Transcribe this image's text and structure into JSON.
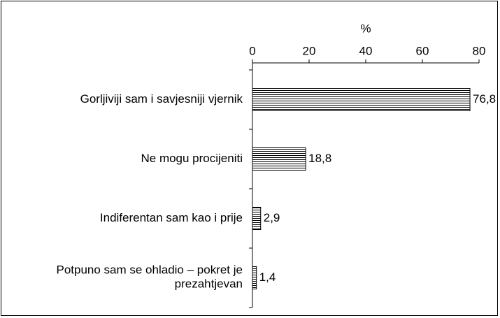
{
  "chart_data": {
    "type": "barh",
    "x_label": "%",
    "categories": [
      "Gorljiviji sam i savjesniji vjernik",
      "Ne mogu procijeniti",
      "Indiferentan sam kao i prije",
      "Potpuno sam se ohladio – pokret je\nprezahtjevan"
    ],
    "values": [
      76.8,
      18.8,
      2.9,
      1.4
    ],
    "value_labels": [
      "76,8",
      "18,8",
      "2,9",
      "1,4"
    ],
    "color": "#000000",
    "xlim": [
      0,
      80
    ],
    "xticks": [
      0,
      20,
      40,
      60,
      80
    ]
  }
}
